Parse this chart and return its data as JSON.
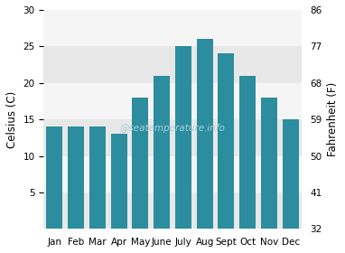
{
  "months": [
    "Jan",
    "Feb",
    "Mar",
    "Apr",
    "May",
    "June",
    "July",
    "Aug",
    "Sept",
    "Oct",
    "Nov",
    "Dec"
  ],
  "values_c": [
    14,
    14,
    14,
    13,
    18,
    21,
    25,
    26,
    24,
    21,
    18,
    15
  ],
  "bar_color": "#2b8d9e",
  "ylim_c": [
    0,
    30
  ],
  "yticks_c": [
    5,
    10,
    15,
    20,
    25,
    30
  ],
  "ylim_f": [
    32,
    86
  ],
  "yticks_f": [
    32,
    41,
    50,
    59,
    68,
    77,
    86
  ],
  "ylabel_left": "Celsius (C)",
  "ylabel_right": "Fahrenheit (F)",
  "watermark": "@seatemperature.info",
  "fig_bg_color": "#ffffff",
  "band_colors": [
    "#e8e8e8",
    "#f5f5f5"
  ],
  "grid_color": "#ffffff",
  "tick_fontsize": 7.5,
  "label_fontsize": 8.5,
  "watermark_color": "#a8cfd8"
}
